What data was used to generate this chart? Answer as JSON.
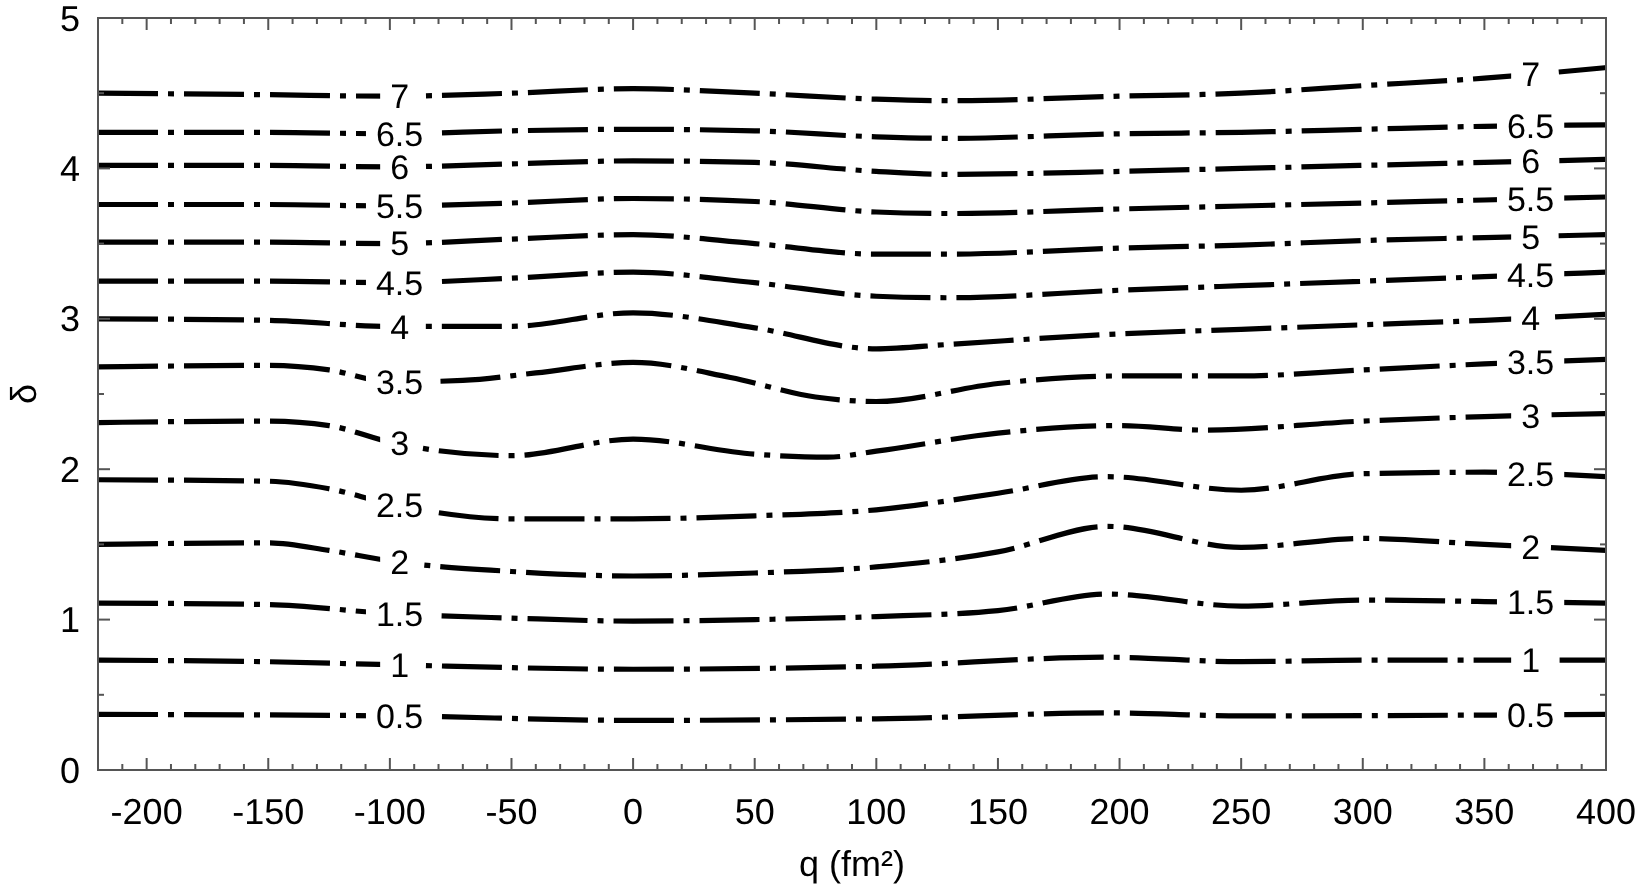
{
  "chart_data": {
    "type": "line",
    "xlabel": "q (fm²)",
    "ylabel": "δ",
    "xlim": [
      -220,
      400
    ],
    "ylim": [
      0,
      5
    ],
    "xticks": [
      {
        "value": -210,
        "label": null
      },
      -200,
      {
        "value": -190,
        "label": null
      },
      {
        "value": -180,
        "label": null
      },
      {
        "value": -170,
        "label": null
      },
      {
        "value": -160,
        "label": null
      },
      -150,
      {
        "value": -140,
        "label": null
      },
      {
        "value": -130,
        "label": null
      },
      {
        "value": -120,
        "label": null
      },
      {
        "value": -110,
        "label": null
      },
      -100,
      {
        "value": -90,
        "label": null
      },
      {
        "value": -80,
        "label": null
      },
      {
        "value": -70,
        "label": null
      },
      {
        "value": -60,
        "label": null
      },
      -50,
      {
        "value": -40,
        "label": null
      },
      {
        "value": -30,
        "label": null
      },
      {
        "value": -20,
        "label": null
      },
      {
        "value": -10,
        "label": null
      },
      0,
      {
        "value": 10,
        "label": null
      },
      {
        "value": 20,
        "label": null
      },
      {
        "value": 30,
        "label": null
      },
      {
        "value": 40,
        "label": null
      },
      50,
      {
        "value": 60,
        "label": null
      },
      {
        "value": 70,
        "label": null
      },
      {
        "value": 80,
        "label": null
      },
      {
        "value": 90,
        "label": null
      },
      100,
      {
        "value": 110,
        "label": null
      },
      {
        "value": 120,
        "label": null
      },
      {
        "value": 130,
        "label": null
      },
      {
        "value": 140,
        "label": null
      },
      150,
      {
        "value": 160,
        "label": null
      },
      {
        "value": 170,
        "label": null
      },
      {
        "value": 180,
        "label": null
      },
      {
        "value": 190,
        "label": null
      },
      200,
      {
        "value": 210,
        "label": null
      },
      {
        "value": 220,
        "label": null
      },
      {
        "value": 230,
        "label": null
      },
      {
        "value": 240,
        "label": null
      },
      250,
      {
        "value": 260,
        "label": null
      },
      {
        "value": 270,
        "label": null
      },
      {
        "value": 280,
        "label": null
      },
      {
        "value": 290,
        "label": null
      },
      300,
      {
        "value": 310,
        "label": null
      },
      {
        "value": 320,
        "label": null
      },
      {
        "value": 330,
        "label": null
      },
      {
        "value": 340,
        "label": null
      },
      350,
      {
        "value": 360,
        "label": null
      },
      {
        "value": 370,
        "label": null
      },
      {
        "value": 380,
        "label": null
      },
      {
        "value": 390,
        "label": null
      },
      400
    ],
    "yticks": [
      0,
      {
        "value": 0.5,
        "label": null
      },
      1,
      {
        "value": 1.5,
        "label": null
      },
      2,
      {
        "value": 2.5,
        "label": null
      },
      3,
      {
        "value": 3.5,
        "label": null
      },
      4,
      {
        "value": 4.5,
        "label": null
      },
      5
    ],
    "line_style": "dashed",
    "series": [
      {
        "name": "7",
        "color": "#000000",
        "x": [
          -220,
          -150,
          -100,
          -50,
          0,
          50,
          100,
          130,
          200,
          250,
          300,
          350,
          400
        ],
        "values": [
          4.5,
          4.49,
          4.48,
          4.5,
          4.53,
          4.5,
          4.46,
          4.45,
          4.48,
          4.5,
          4.55,
          4.6,
          4.67
        ]
      },
      {
        "name": "6.5",
        "color": "#000000",
        "x": [
          -220,
          -150,
          -100,
          -50,
          0,
          50,
          100,
          130,
          200,
          250,
          300,
          350,
          400
        ],
        "values": [
          4.24,
          4.24,
          4.23,
          4.25,
          4.26,
          4.25,
          4.21,
          4.2,
          4.23,
          4.24,
          4.26,
          4.28,
          4.29
        ]
      },
      {
        "name": "6",
        "color": "#000000",
        "x": [
          -220,
          -150,
          -100,
          -50,
          0,
          50,
          100,
          130,
          200,
          250,
          300,
          350,
          400
        ],
        "values": [
          4.02,
          4.02,
          4.01,
          4.03,
          4.05,
          4.04,
          3.98,
          3.96,
          3.98,
          4.0,
          4.02,
          4.04,
          4.06
        ]
      },
      {
        "name": "5.5",
        "color": "#000000",
        "x": [
          -220,
          -150,
          -100,
          -50,
          0,
          50,
          100,
          130,
          200,
          250,
          300,
          350,
          400
        ],
        "values": [
          3.76,
          3.76,
          3.75,
          3.77,
          3.8,
          3.78,
          3.71,
          3.7,
          3.73,
          3.75,
          3.77,
          3.79,
          3.81
        ]
      },
      {
        "name": "5",
        "color": "#000000",
        "x": [
          -220,
          -150,
          -100,
          -50,
          0,
          50,
          100,
          130,
          200,
          250,
          300,
          350,
          400
        ],
        "values": [
          3.51,
          3.51,
          3.5,
          3.53,
          3.56,
          3.5,
          3.43,
          3.43,
          3.47,
          3.49,
          3.52,
          3.54,
          3.56
        ]
      },
      {
        "name": "4.5",
        "color": "#000000",
        "x": [
          -220,
          -150,
          -100,
          -50,
          0,
          50,
          100,
          130,
          200,
          250,
          300,
          350,
          400
        ],
        "values": [
          3.25,
          3.25,
          3.24,
          3.27,
          3.31,
          3.24,
          3.15,
          3.14,
          3.19,
          3.22,
          3.25,
          3.28,
          3.31
        ]
      },
      {
        "name": "4",
        "color": "#000000",
        "x": [
          -220,
          -150,
          -100,
          -50,
          0,
          50,
          100,
          130,
          200,
          250,
          300,
          350,
          400
        ],
        "values": [
          3.0,
          2.99,
          2.95,
          2.95,
          3.04,
          2.94,
          2.8,
          2.83,
          2.9,
          2.93,
          2.96,
          2.99,
          3.03
        ]
      },
      {
        "name": "3.5",
        "color": "#000000",
        "x": [
          -220,
          -150,
          -125,
          -100,
          -70,
          -40,
          0,
          40,
          75,
          100,
          150,
          200,
          250,
          300,
          350,
          400
        ],
        "values": [
          2.68,
          2.69,
          2.66,
          2.58,
          2.59,
          2.64,
          2.71,
          2.61,
          2.48,
          2.45,
          2.57,
          2.62,
          2.62,
          2.66,
          2.7,
          2.73
        ]
      },
      {
        "name": "3",
        "color": "#000000",
        "x": [
          -220,
          -150,
          -125,
          -100,
          -50,
          0,
          50,
          80,
          100,
          150,
          200,
          235,
          300,
          350,
          400
        ],
        "values": [
          2.31,
          2.32,
          2.29,
          2.18,
          2.09,
          2.2,
          2.1,
          2.08,
          2.12,
          2.24,
          2.29,
          2.26,
          2.32,
          2.35,
          2.37
        ]
      },
      {
        "name": "2.5",
        "color": "#000000",
        "x": [
          -220,
          -150,
          -125,
          -100,
          -50,
          0,
          50,
          100,
          150,
          195,
          250,
          300,
          350,
          400
        ],
        "values": [
          1.93,
          1.92,
          1.87,
          1.77,
          1.67,
          1.67,
          1.69,
          1.73,
          1.84,
          1.95,
          1.86,
          1.97,
          1.98,
          1.95
        ]
      },
      {
        "name": "2",
        "color": "#000000",
        "x": [
          -220,
          -150,
          -125,
          -100,
          -50,
          0,
          50,
          100,
          150,
          195,
          250,
          300,
          350,
          400
        ],
        "values": [
          1.5,
          1.51,
          1.46,
          1.39,
          1.32,
          1.29,
          1.31,
          1.35,
          1.45,
          1.62,
          1.48,
          1.54,
          1.5,
          1.46
        ]
      },
      {
        "name": "1.5",
        "color": "#000000",
        "x": [
          -220,
          -150,
          -100,
          -50,
          0,
          50,
          100,
          150,
          195,
          250,
          300,
          350,
          400
        ],
        "values": [
          1.11,
          1.1,
          1.04,
          1.01,
          0.99,
          1.0,
          1.02,
          1.06,
          1.17,
          1.09,
          1.13,
          1.12,
          1.11
        ]
      },
      {
        "name": "1",
        "color": "#000000",
        "x": [
          -220,
          -150,
          -100,
          0,
          100,
          195,
          250,
          300,
          400
        ],
        "values": [
          0.73,
          0.72,
          0.7,
          0.67,
          0.69,
          0.75,
          0.72,
          0.73,
          0.73
        ]
      },
      {
        "name": "0.5",
        "color": "#000000",
        "x": [
          -220,
          -100,
          0,
          100,
          195,
          250,
          400
        ],
        "values": [
          0.37,
          0.36,
          0.33,
          0.34,
          0.38,
          0.36,
          0.37
        ]
      }
    ]
  }
}
